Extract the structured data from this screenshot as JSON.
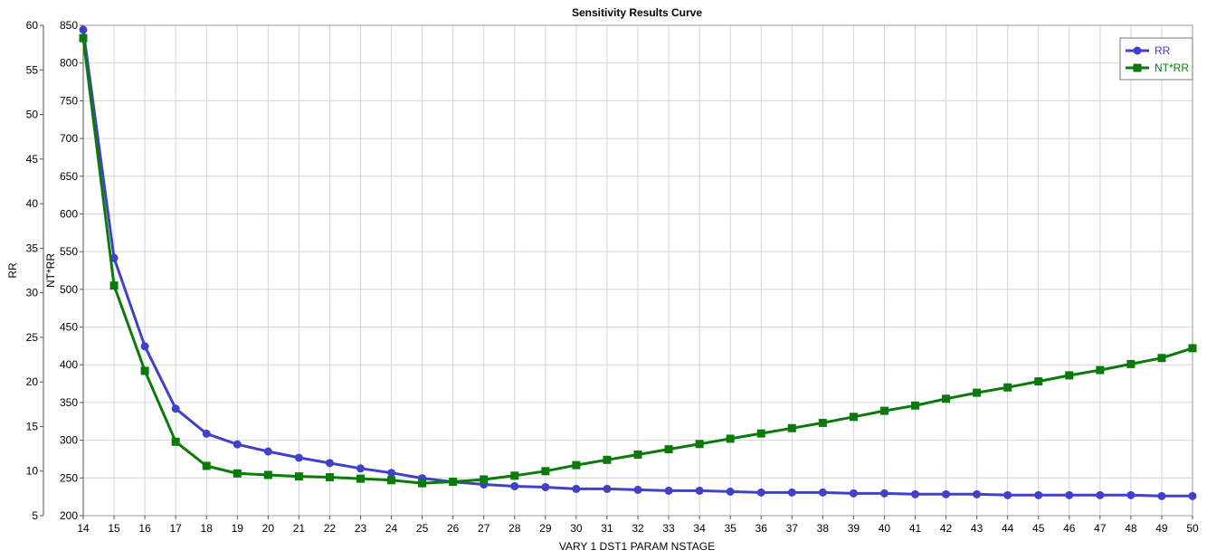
{
  "chart_data": {
    "type": "line",
    "title": "Sensitivity Results Curve",
    "xlabel": "VARY   1 DST1 PARAM NSTAGE",
    "ylabel_left": "RR",
    "ylabel_right": "NT*RR",
    "grid": true,
    "legend_position": "top-right",
    "x": [
      14,
      15,
      16,
      17,
      18,
      19,
      20,
      21,
      22,
      23,
      24,
      25,
      26,
      27,
      28,
      29,
      30,
      31,
      32,
      33,
      34,
      35,
      36,
      37,
      38,
      39,
      40,
      41,
      42,
      43,
      44,
      45,
      46,
      47,
      48,
      49,
      50
    ],
    "axes": {
      "left": {
        "label": "RR",
        "range": [
          5,
          60
        ],
        "ticks": [
          5,
          10,
          15,
          20,
          25,
          30,
          35,
          40,
          45,
          50,
          55,
          60
        ]
      },
      "inner": {
        "label": "NT*RR",
        "range": [
          200,
          850
        ],
        "ticks": [
          200,
          250,
          300,
          350,
          400,
          450,
          500,
          550,
          600,
          650,
          700,
          750,
          800,
          850
        ]
      }
    },
    "series": [
      {
        "name": "RR",
        "color": "#4040c8",
        "marker": "circle",
        "axis": "left",
        "values": [
          59.5,
          33.9,
          24.0,
          17.0,
          14.2,
          13.0,
          12.2,
          11.5,
          10.9,
          10.3,
          9.8,
          9.2,
          8.8,
          8.5,
          8.3,
          8.2,
          8.0,
          8.0,
          7.9,
          7.8,
          7.8,
          7.7,
          7.6,
          7.6,
          7.6,
          7.5,
          7.5,
          7.4,
          7.4,
          7.4,
          7.3,
          7.3,
          7.3,
          7.3,
          7.3,
          7.2,
          7.2
        ]
      },
      {
        "name": "NT*RR",
        "color": "#0a7a0a",
        "marker": "square",
        "axis": "inner",
        "values": [
          833,
          505,
          392,
          298,
          266,
          256,
          254,
          252,
          251,
          249,
          247,
          243,
          245,
          248,
          253,
          259,
          267,
          274,
          281,
          288,
          295,
          302,
          309,
          316,
          323,
          331,
          339,
          346,
          355,
          363,
          370,
          378,
          386,
          393,
          401,
          409,
          422
        ]
      }
    ]
  }
}
